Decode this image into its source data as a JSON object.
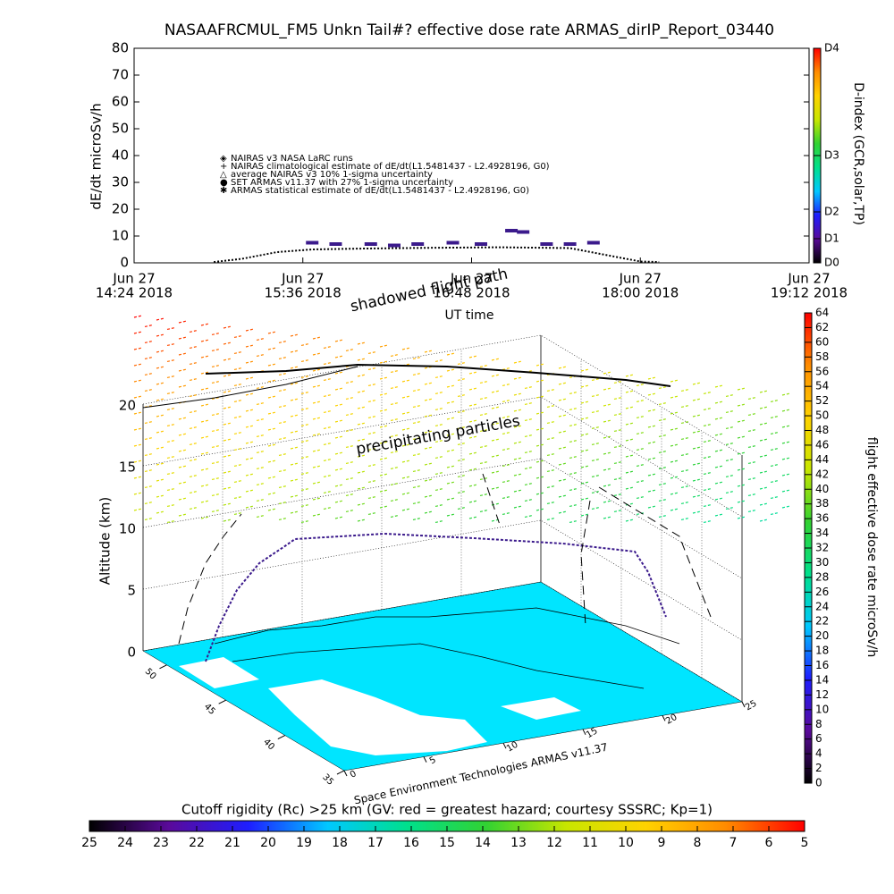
{
  "chart_data": {
    "type": "line",
    "title": "NASAAFRCMUL_FM5 Unkn Tail#? effective dose rate ARMAS_dirIP_Report_03440",
    "xlabel": "UT time",
    "ylabel": "dE/dt microSv/h",
    "ylim": [
      0,
      80
    ],
    "yticks": [
      0,
      10,
      20,
      30,
      40,
      50,
      60,
      70,
      80
    ],
    "xlim": [
      "2018-06-27 14:24",
      "2018-06-27 19:12"
    ],
    "xticks": [
      {
        "value": "2018-06-27 14:24",
        "label": [
          "Jun 27",
          "14:24 2018"
        ]
      },
      {
        "value": "2018-06-27 15:36",
        "label": [
          "Jun 27",
          "15:36 2018"
        ]
      },
      {
        "value": "2018-06-27 16:48",
        "label": [
          "Jun 27",
          "16:48 2018"
        ]
      },
      {
        "value": "2018-06-27 18:00",
        "label": [
          "Jun 27",
          "18:00 2018"
        ]
      },
      {
        "value": "2018-06-27 19:12",
        "label": [
          "Jun 27",
          "19:12 2018"
        ]
      }
    ],
    "legend": [
      "NAIRAS v3 NASA LaRC runs",
      "NAIRAS climatological estimate of dE/dt(L1.5481437 - L2.4928196, G0)",
      "average NAIRAS v3 10% 1-sigma uncertainty",
      "SET ARMAS v11.37 with 27% 1-sigma uncertainty",
      "ARMAS statistical estimate of dE/dt(L1.5481437 - L2.4928196, G0)"
    ],
    "series": [
      {
        "name": "NAIRAS climatological estimate",
        "color": "#000000",
        "x": [
          "2018-06-27 14:58",
          "2018-06-27 15:10",
          "2018-06-27 15:25",
          "2018-06-27 15:40",
          "2018-06-27 16:00",
          "2018-06-27 16:30",
          "2018-06-27 17:00",
          "2018-06-27 17:30",
          "2018-06-27 17:45",
          "2018-06-27 18:00",
          "2018-06-27 18:08"
        ],
        "values": [
          0.3,
          1.5,
          4,
          5,
          5.3,
          5.6,
          5.8,
          5.5,
          3,
          0.5,
          0.3
        ]
      },
      {
        "name": "SET ARMAS v11.37",
        "color": "#3b1a8c",
        "x": [
          "2018-06-27 15:40",
          "2018-06-27 15:50",
          "2018-06-27 16:05",
          "2018-06-27 16:15",
          "2018-06-27 16:25",
          "2018-06-27 16:40",
          "2018-06-27 16:52",
          "2018-06-27 17:05",
          "2018-06-27 17:10",
          "2018-06-27 17:20",
          "2018-06-27 17:30",
          "2018-06-27 17:40"
        ],
        "values": [
          7.5,
          7,
          7,
          6.5,
          7,
          7.5,
          7,
          12,
          11.5,
          7,
          7,
          7.5
        ]
      }
    ],
    "colorbar": {
      "label": "D-index (GCR,solar,TP)",
      "ticks": [
        {
          "value": 0,
          "label": "D0"
        },
        {
          "value": 9,
          "label": "D1"
        },
        {
          "value": 19,
          "label": "D2"
        },
        {
          "value": 40,
          "label": "D3"
        },
        {
          "value": 80,
          "label": "D4"
        }
      ]
    },
    "colormap": [
      "#000000",
      "#5a0a9a",
      "#1e1eff",
      "#00c8ff",
      "#00e08c",
      "#32d232",
      "#c8e600",
      "#ffd200",
      "#ff8c00",
      "#ff0000"
    ]
  },
  "plot3d": {
    "zlabel": "Altitude (km)",
    "zlim": [
      0,
      20
    ],
    "zticks": [
      0,
      5,
      10,
      15,
      20
    ],
    "latlim": [
      35,
      52
    ],
    "lat_ticks": [
      50,
      45,
      40,
      35
    ],
    "lonlim": [
      0,
      25
    ],
    "lon_ticks": [
      0,
      5,
      10,
      15,
      20,
      25
    ],
    "annotations": [
      "shadowed flight path",
      "precipitating particles",
      "Space Environment Technologies ARMAS v11.37"
    ]
  },
  "dose_colorbar": {
    "label": "flight effective dose rate microSv/h",
    "lim": [
      0,
      64
    ],
    "ticks": [
      0,
      2,
      4,
      6,
      8,
      10,
      12,
      14,
      16,
      18,
      20,
      22,
      24,
      26,
      28,
      30,
      32,
      34,
      36,
      38,
      40,
      42,
      44,
      46,
      48,
      50,
      52,
      54,
      56,
      58,
      60,
      62,
      64
    ]
  },
  "cutoff_colorbar": {
    "label": "Cutoff rigidity (Rc) >25 km (GV: red = greatest hazard; courtesy SSSRC; Kp=1)",
    "lim": [
      25,
      5
    ],
    "ticks": [
      25,
      24,
      23,
      22,
      21,
      20,
      19,
      18,
      17,
      16,
      15,
      14,
      13,
      12,
      11,
      10,
      9,
      8,
      7,
      6,
      5
    ]
  }
}
